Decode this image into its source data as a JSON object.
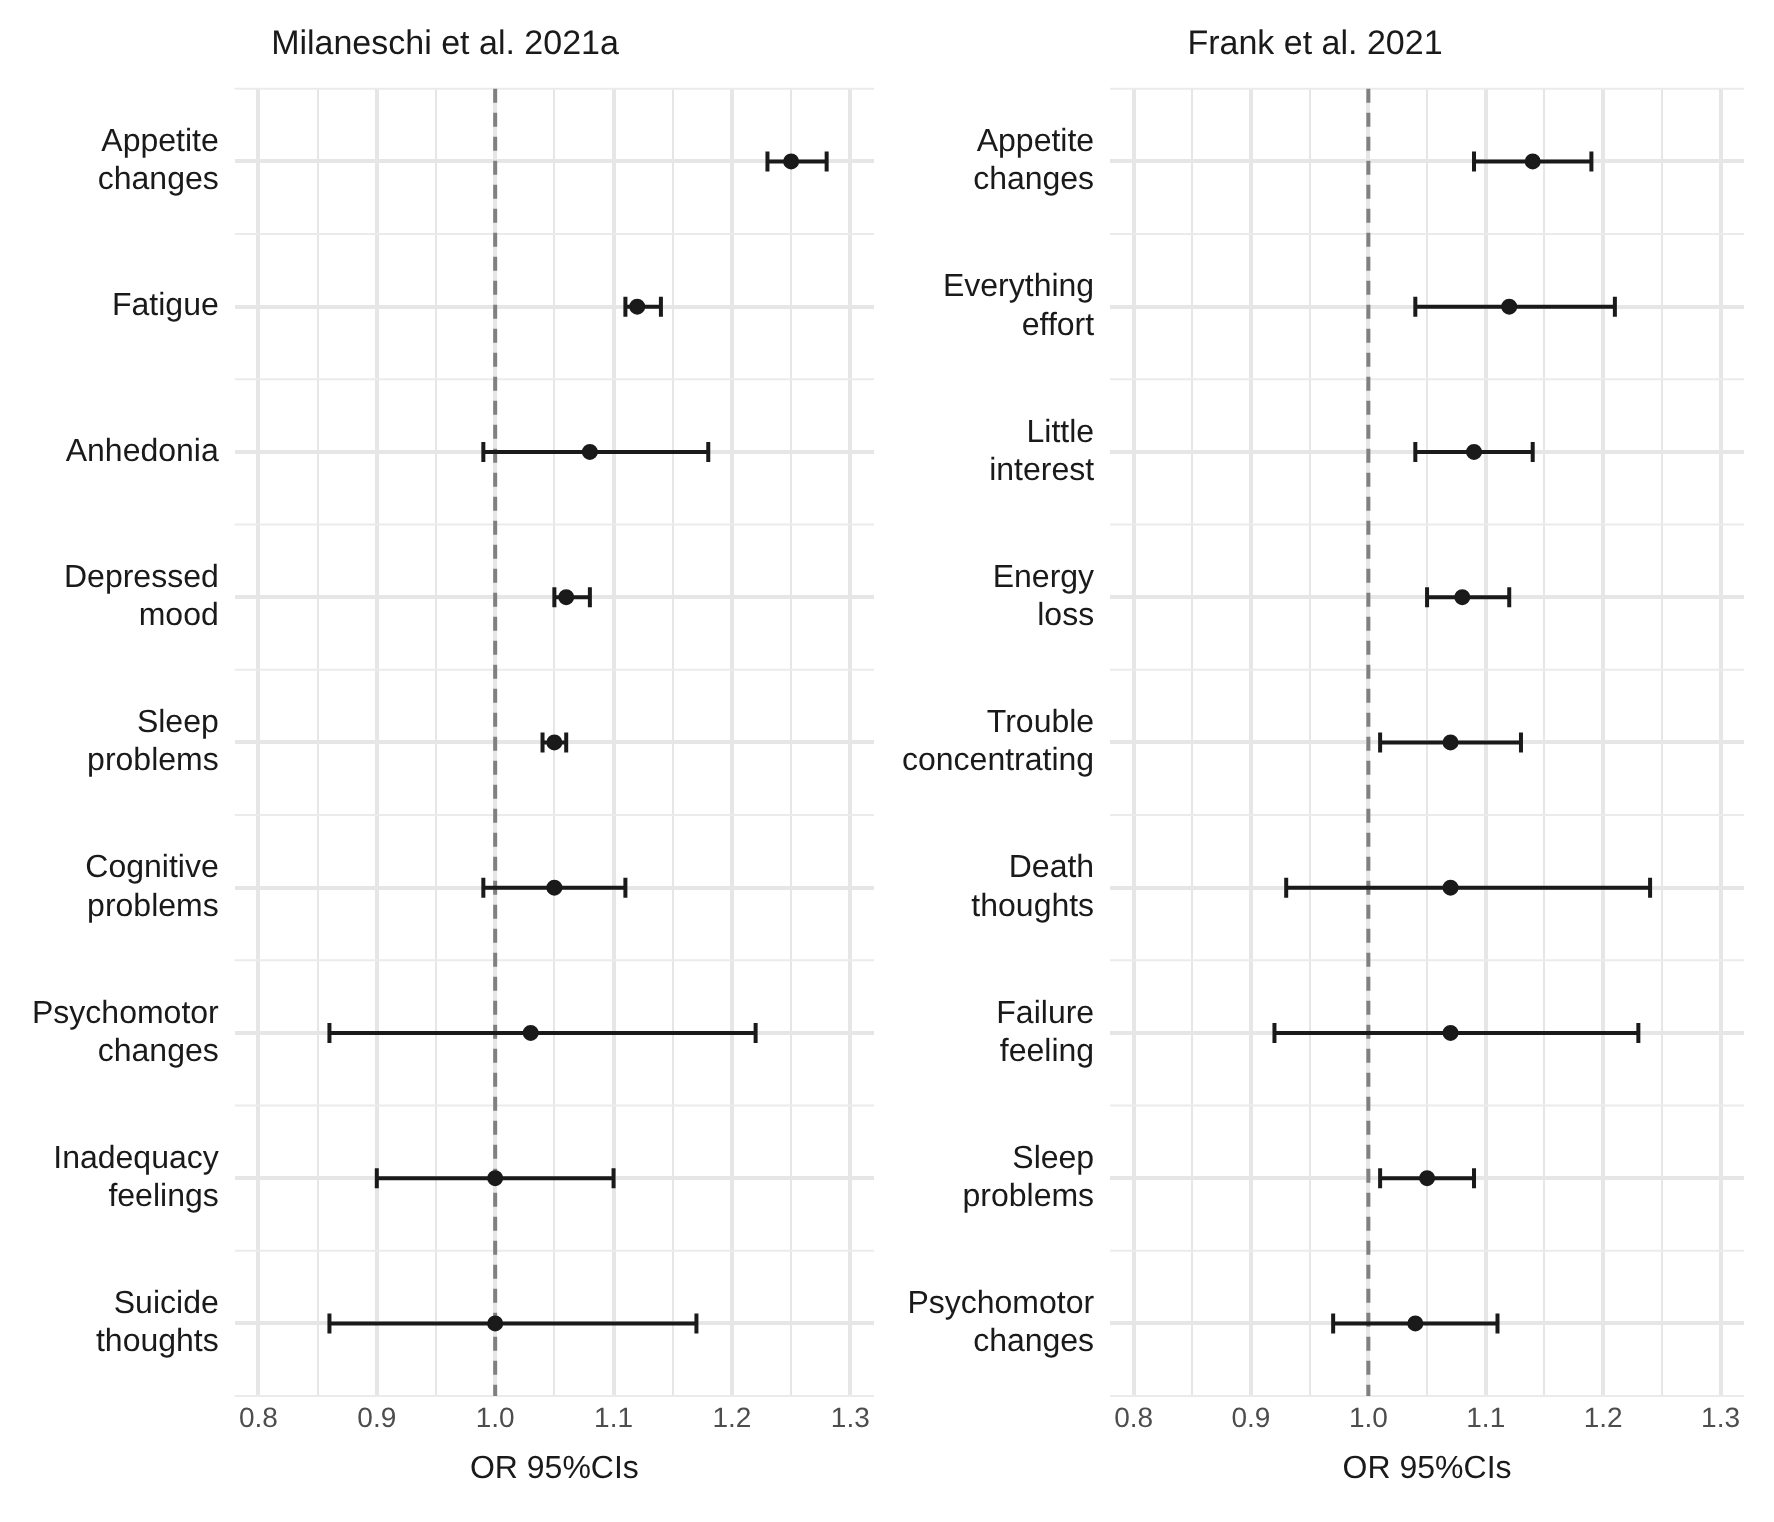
{
  "chart_data": [
    {
      "type": "scatter",
      "orientation": "horizontal",
      "title": "Milaneschi et al. 2021a",
      "xlabel": "OR 95%CIs",
      "marker": "circle",
      "grid": true,
      "color": "#1a1a1a",
      "categories": [
        "Appetite changes",
        "Fatigue",
        "Anhedonia",
        "Depressed mood",
        "Sleep problems",
        "Cognitive problems",
        "Psychomotor changes",
        "Inadequacy feelings",
        "Suicide thoughts"
      ],
      "values": [
        1.25,
        1.12,
        1.08,
        1.06,
        1.05,
        1.05,
        1.03,
        1.0,
        1.0
      ],
      "errors": [
        [
          1.23,
          1.28
        ],
        [
          1.11,
          1.14
        ],
        [
          0.99,
          1.18
        ],
        [
          1.05,
          1.08
        ],
        [
          1.04,
          1.06
        ],
        [
          0.99,
          1.11
        ],
        [
          0.86,
          1.22
        ],
        [
          0.9,
          1.1
        ],
        [
          0.86,
          1.17
        ]
      ],
      "xlim": [
        0.78,
        1.32
      ],
      "xticks": [
        0.8,
        {
          "value": 0.85,
          "label": null
        },
        0.9,
        {
          "value": 0.95,
          "label": null
        },
        {
          "value": 1,
          "label": "1.0"
        },
        {
          "value": 1.05,
          "label": null
        },
        1.1,
        {
          "value": 1.15,
          "label": null
        },
        1.2,
        {
          "value": 1.25,
          "label": null
        },
        1.3
      ],
      "ref_lines": [
        {
          "axis": "x",
          "value": 1,
          "color": "#808080",
          "line_style": "dashed"
        }
      ]
    },
    {
      "type": "scatter",
      "orientation": "horizontal",
      "title": "Frank et al. 2021",
      "xlabel": "OR 95%CIs",
      "marker": "circle",
      "grid": true,
      "color": "#1a1a1a",
      "categories": [
        "Appetite changes",
        "Everything effort",
        "Little interest",
        "Energy loss",
        "Trouble concentrating",
        "Death thoughts",
        "Failure feeling",
        "Sleep problems",
        "Psychomotor changes"
      ],
      "values": [
        1.14,
        1.12,
        1.09,
        1.08,
        1.07,
        1.07,
        1.07,
        1.05,
        1.04
      ],
      "errors": [
        [
          1.09,
          1.19
        ],
        [
          1.04,
          1.21
        ],
        [
          1.04,
          1.14
        ],
        [
          1.05,
          1.12
        ],
        [
          1.01,
          1.13
        ],
        [
          0.93,
          1.24
        ],
        [
          0.92,
          1.23
        ],
        [
          1.01,
          1.09
        ],
        [
          0.97,
          1.11
        ]
      ],
      "xlim": [
        0.78,
        1.32
      ],
      "xticks": [
        0.8,
        {
          "value": 0.85,
          "label": null
        },
        0.9,
        {
          "value": 0.95,
          "label": null
        },
        {
          "value": 1,
          "label": "1.0"
        },
        {
          "value": 1.05,
          "label": null
        },
        1.1,
        {
          "value": 1.15,
          "label": null
        },
        1.2,
        {
          "value": 1.25,
          "label": null
        },
        1.3
      ],
      "ref_lines": [
        {
          "axis": "x",
          "value": 1,
          "color": "#808080",
          "line_style": "dashed"
        }
      ]
    }
  ]
}
